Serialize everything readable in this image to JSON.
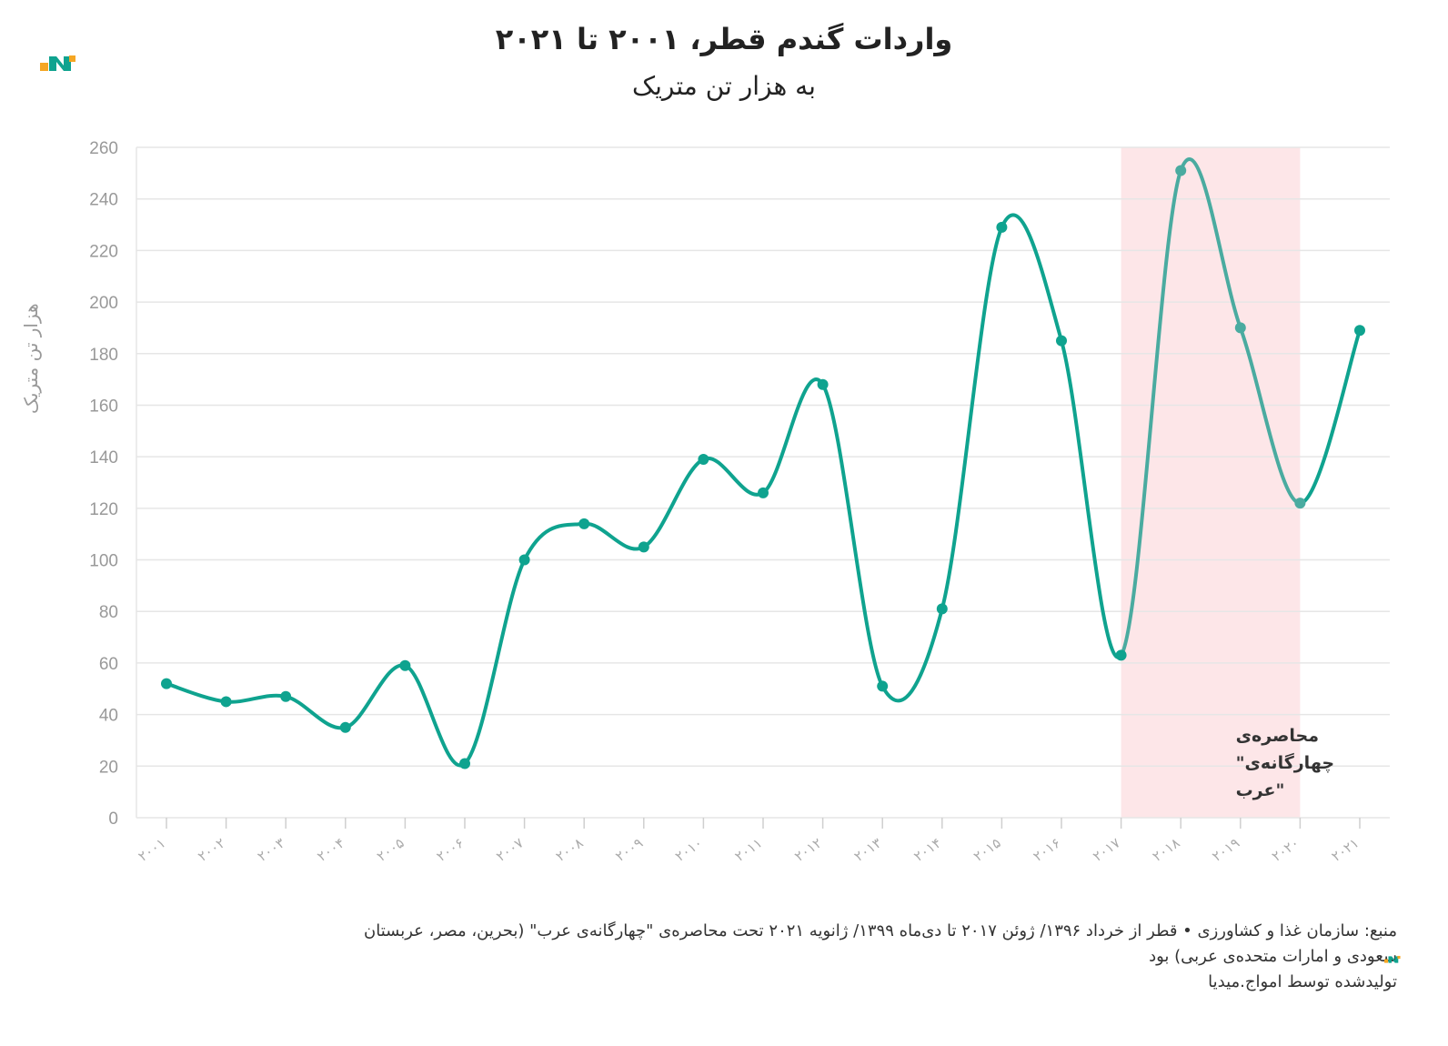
{
  "header": {
    "title": "واردات گندم قطر، ۲۰۰۱ تا ۲۰۲۱",
    "subtitle": "به هزار تن متریک"
  },
  "footer": {
    "source_line1": "منبع: سازمان غذا و کشاورزی • قطر از خرداد ۱۳۹۶/ ژوئن ۲۰۱۷ تا دی‌ماه ۱۳۹۹/ ژانویه ۲۰۲۱ تحت محاصره‌ی \"چهارگانه‌ی عرب\" (بحرین، مصر، عربستان",
    "source_line2": "سعودی و امارات متحده‌ی عربی) بود",
    "credit": "تولیدشده توسط امواج.میدیا"
  },
  "colors": {
    "line": "#0fa38f",
    "line_highlight": "#4aaba0",
    "band": "#fde6e8",
    "grid": "#e6e6e6",
    "axis_text": "#999999",
    "logo_orange": "#f5a623",
    "logo_teal": "#0fa38f"
  },
  "chart_data": {
    "type": "line",
    "title": "واردات گندم قطر، ۲۰۰۱ تا ۲۰۲۱",
    "subtitle": "به هزار تن متریک",
    "ylabel": "هزار تن متریک",
    "xlabel": "",
    "ylim": [
      0,
      260
    ],
    "yticks": [
      "0",
      "20",
      "40",
      "60",
      "80",
      "100",
      "120",
      "140",
      "160",
      "180",
      "200",
      "220",
      "240",
      "260"
    ],
    "categories": [
      "۲۰۰۱",
      "۲۰۰۲",
      "۲۰۰۳",
      "۲۰۰۴",
      "۲۰۰۵",
      "۲۰۰۶",
      "۲۰۰۷",
      "۲۰۰۸",
      "۲۰۰۹",
      "۲۰۱۰",
      "۲۰۱۱",
      "۲۰۱۲",
      "۲۰۱۳",
      "۲۰۱۴",
      "۲۰۱۵",
      "۲۰۱۶",
      "۲۰۱۷",
      "۲۰۱۸",
      "۲۰۱۹",
      "۲۰۲۰",
      "۲۰۲۱"
    ],
    "values": [
      52,
      45,
      47,
      35,
      59,
      21,
      100,
      114,
      105,
      139,
      126,
      168,
      51,
      81,
      229,
      185,
      63,
      251,
      190,
      122,
      189
    ],
    "highlight_band": {
      "from": "۲۰۱۷",
      "to": "۲۰۲۰",
      "label_lines": [
        "محاصره‌ی",
        "چهارگانه‌ی\"",
        "\"عرب"
      ]
    },
    "grid": true
  }
}
